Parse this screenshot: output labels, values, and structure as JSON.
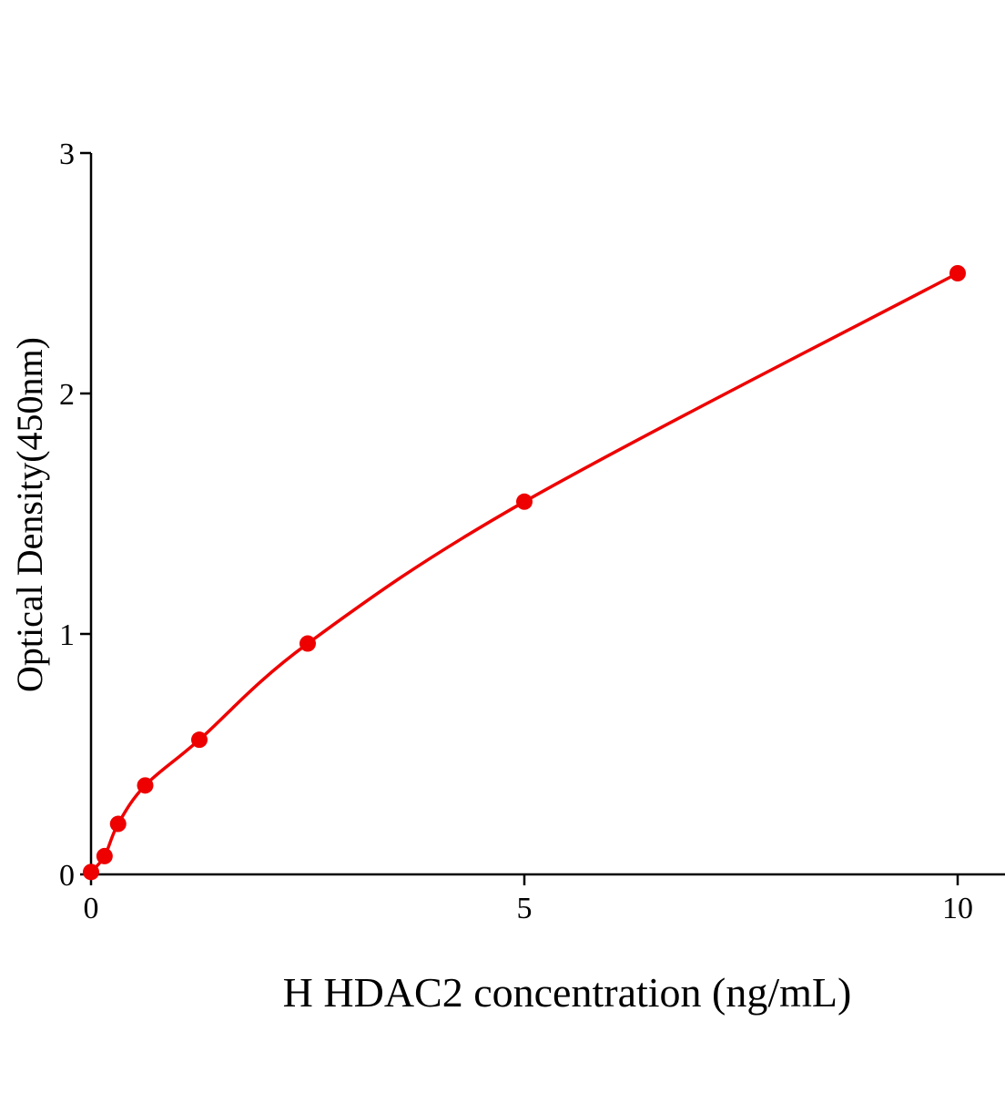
{
  "chart_data": {
    "type": "scatter",
    "title": "",
    "xlabel": "H HDAC2 concentration (ng/mL)",
    "ylabel": "Optical Density(450nm)",
    "xlim": [
      0,
      10.5
    ],
    "ylim": [
      0,
      3
    ],
    "xticks": [
      0,
      5,
      10
    ],
    "yticks": [
      0,
      1,
      2,
      3
    ],
    "grid": false,
    "legend": "none",
    "color": "#ee0000",
    "fit_line": "smooth curve through points",
    "series": [
      {
        "x": [
          0,
          0.156,
          0.3125,
          0.625,
          1.25,
          2.5,
          5,
          10
        ],
        "y": [
          0.01,
          0.076,
          0.21,
          0.37,
          0.56,
          0.96,
          1.55,
          2.5
        ]
      }
    ]
  }
}
